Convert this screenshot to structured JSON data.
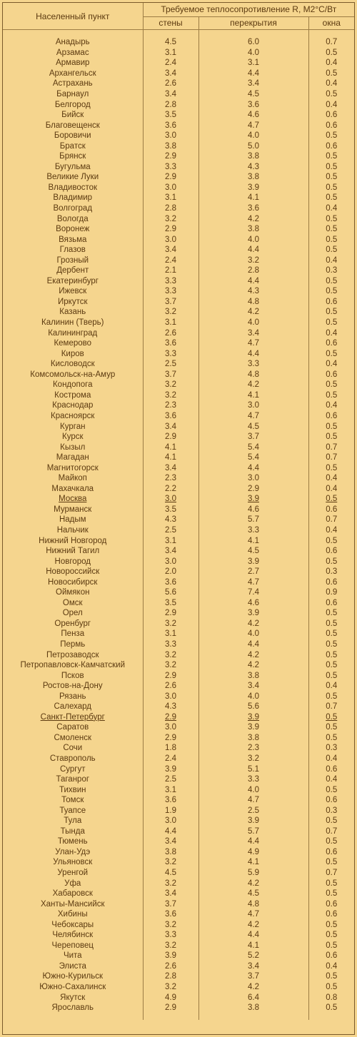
{
  "header": {
    "city": "Населенный пункт",
    "group": "Требуемое теплосопротивление R, М2°С/Вт",
    "walls": "стены",
    "ceilings": "перекрытия",
    "windows": "окна"
  },
  "rows": [
    {
      "city": "Анадырь",
      "walls": "4.5",
      "ceilings": "6.0",
      "windows": "0.7"
    },
    {
      "city": "Арзамас",
      "walls": "3.1",
      "ceilings": "4.0",
      "windows": "0.5"
    },
    {
      "city": "Армавир",
      "walls": "2.4",
      "ceilings": "3.1",
      "windows": "0.4"
    },
    {
      "city": "Архангельск",
      "walls": "3.4",
      "ceilings": "4.4",
      "windows": "0.5"
    },
    {
      "city": "Астрахань",
      "walls": "2.6",
      "ceilings": "3.4",
      "windows": "0.4"
    },
    {
      "city": "Барнаул",
      "walls": "3.4",
      "ceilings": "4.5",
      "windows": "0.5"
    },
    {
      "city": "Белгород",
      "walls": "2.8",
      "ceilings": "3.6",
      "windows": "0.4"
    },
    {
      "city": "Бийск",
      "walls": "3.5",
      "ceilings": "4.6",
      "windows": "0.6"
    },
    {
      "city": "Благовещенск",
      "walls": "3.6",
      "ceilings": "4.7",
      "windows": "0.6"
    },
    {
      "city": "Боровичи",
      "walls": "3.0",
      "ceilings": "4.0",
      "windows": "0.5"
    },
    {
      "city": "Братск",
      "walls": "3.8",
      "ceilings": "5.0",
      "windows": "0.6"
    },
    {
      "city": "Брянск",
      "walls": "2.9",
      "ceilings": "3.8",
      "windows": "0.5"
    },
    {
      "city": "Бугульма",
      "walls": "3.3",
      "ceilings": "4.3",
      "windows": "0.5"
    },
    {
      "city": "Великие Луки",
      "walls": "2.9",
      "ceilings": "3.8",
      "windows": "0.5"
    },
    {
      "city": "Владивосток",
      "walls": "3.0",
      "ceilings": "3.9",
      "windows": "0.5"
    },
    {
      "city": "Владимир",
      "walls": "3.1",
      "ceilings": "4.1",
      "windows": "0.5"
    },
    {
      "city": "Волгоград",
      "walls": "2.8",
      "ceilings": "3.6",
      "windows": "0.4"
    },
    {
      "city": "Вологда",
      "walls": "3.2",
      "ceilings": "4.2",
      "windows": "0.5"
    },
    {
      "city": "Воронеж",
      "walls": "2.9",
      "ceilings": "3.8",
      "windows": "0.5"
    },
    {
      "city": "Вязьма",
      "walls": "3.0",
      "ceilings": "4.0",
      "windows": "0.5"
    },
    {
      "city": "Глазов",
      "walls": "3.4",
      "ceilings": "4.4",
      "windows": "0.5"
    },
    {
      "city": "Грозный",
      "walls": "2.4",
      "ceilings": "3.2",
      "windows": "0.4"
    },
    {
      "city": "Дербент",
      "walls": "2.1",
      "ceilings": "2.8",
      "windows": "0.3"
    },
    {
      "city": "Екатеринбург",
      "walls": "3.3",
      "ceilings": "4.4",
      "windows": "0.5"
    },
    {
      "city": "Ижевск",
      "walls": "3.3",
      "ceilings": "4.3",
      "windows": "0.5"
    },
    {
      "city": "Иркутск",
      "walls": "3.7",
      "ceilings": "4.8",
      "windows": "0.6"
    },
    {
      "city": "Казань",
      "walls": "3.2",
      "ceilings": "4.2",
      "windows": "0.5"
    },
    {
      "city": "Калинин (Тверь)",
      "walls": "3.1",
      "ceilings": "4.0",
      "windows": "0.5"
    },
    {
      "city": "Калининград",
      "walls": "2.6",
      "ceilings": "3.4",
      "windows": "0.4"
    },
    {
      "city": "Кемерово",
      "walls": "3.6",
      "ceilings": "4.7",
      "windows": "0.6"
    },
    {
      "city": "Киров",
      "walls": "3.3",
      "ceilings": "4.4",
      "windows": "0.5"
    },
    {
      "city": "Кисловодск",
      "walls": "2.5",
      "ceilings": "3.3",
      "windows": "0.4"
    },
    {
      "city": "Комсомольск-на-Амур",
      "walls": "3.7",
      "ceilings": "4.8",
      "windows": "0.6"
    },
    {
      "city": "Кондопога",
      "walls": "3.2",
      "ceilings": "4.2",
      "windows": "0.5"
    },
    {
      "city": "Кострома",
      "walls": "3.2",
      "ceilings": "4.1",
      "windows": "0.5"
    },
    {
      "city": "Краснодар",
      "walls": "2.3",
      "ceilings": "3.0",
      "windows": "0.4"
    },
    {
      "city": "Красноярск",
      "walls": "3.6",
      "ceilings": "4.7",
      "windows": "0.6"
    },
    {
      "city": "Курган",
      "walls": "3.4",
      "ceilings": "4.5",
      "windows": "0.5"
    },
    {
      "city": "Курск",
      "walls": "2.9",
      "ceilings": "3.7",
      "windows": "0.5"
    },
    {
      "city": "Кызыл",
      "walls": "4.1",
      "ceilings": "5.4",
      "windows": "0.7"
    },
    {
      "city": "Магадан",
      "walls": "4.1",
      "ceilings": "5.4",
      "windows": "0.7"
    },
    {
      "city": "Магнитогорск",
      "walls": "3.4",
      "ceilings": "4.4",
      "windows": "0.5"
    },
    {
      "city": "Майкоп",
      "walls": "2.3",
      "ceilings": "3.0",
      "windows": "0.4"
    },
    {
      "city": "Махачкала",
      "walls": "2.2",
      "ceilings": "2.9",
      "windows": "0.4"
    },
    {
      "city": "Москва",
      "walls": "3.0",
      "ceilings": "3.9",
      "windows": "0.5",
      "underline": true
    },
    {
      "city": "Мурманск",
      "walls": "3.5",
      "ceilings": "4.6",
      "windows": "0.6"
    },
    {
      "city": "Надым",
      "walls": "4.3",
      "ceilings": "5.7",
      "windows": "0.7"
    },
    {
      "city": "Нальчик",
      "walls": "2.5",
      "ceilings": "3.3",
      "windows": "0.4"
    },
    {
      "city": "Нижний Новгород",
      "walls": "3.1",
      "ceilings": "4.1",
      "windows": "0.5"
    },
    {
      "city": "Нижний Тагил",
      "walls": "3.4",
      "ceilings": "4.5",
      "windows": "0.6"
    },
    {
      "city": "Новгород",
      "walls": "3.0",
      "ceilings": "3.9",
      "windows": "0.5"
    },
    {
      "city": "Новороссийск",
      "walls": "2.0",
      "ceilings": "2.7",
      "windows": "0.3"
    },
    {
      "city": "Новосибирск",
      "walls": "3.6",
      "ceilings": "4.7",
      "windows": "0.6"
    },
    {
      "city": "Оймякон",
      "walls": "5.6",
      "ceilings": "7.4",
      "windows": "0.9"
    },
    {
      "city": "Омск",
      "walls": "3.5",
      "ceilings": "4.6",
      "windows": "0.6"
    },
    {
      "city": "Орел",
      "walls": "2.9",
      "ceilings": "3.9",
      "windows": "0.5"
    },
    {
      "city": "Оренбург",
      "walls": "3.2",
      "ceilings": "4.2",
      "windows": "0.5"
    },
    {
      "city": "Пенза",
      "walls": "3.1",
      "ceilings": "4.0",
      "windows": "0.5"
    },
    {
      "city": "Пермь",
      "walls": "3.3",
      "ceilings": "4.4",
      "windows": "0.5"
    },
    {
      "city": "Петрозаводск",
      "walls": "3.2",
      "ceilings": "4.2",
      "windows": "0.5"
    },
    {
      "city": "Петропавловск-Камчатский",
      "walls": "3.2",
      "ceilings": "4.2",
      "windows": "0.5"
    },
    {
      "city": "Псков",
      "walls": "2.9",
      "ceilings": "3.8",
      "windows": "0.5"
    },
    {
      "city": "Ростов-на-Дону",
      "walls": "2.6",
      "ceilings": "3.4",
      "windows": "0.4"
    },
    {
      "city": "Рязань",
      "walls": "3.0",
      "ceilings": "4.0",
      "windows": "0.5"
    },
    {
      "city": "Салехард",
      "walls": "4.3",
      "ceilings": "5.6",
      "windows": "0.7"
    },
    {
      "city": "Санкт-Петербург",
      "walls": "2.9",
      "ceilings": "3.9",
      "windows": "0.5",
      "underline": true
    },
    {
      "city": "Саратов",
      "walls": "3.0",
      "ceilings": "3.9",
      "windows": "0.5"
    },
    {
      "city": "Смоленск",
      "walls": "2.9",
      "ceilings": "3.8",
      "windows": "0.5"
    },
    {
      "city": "Сочи",
      "walls": "1.8",
      "ceilings": "2.3",
      "windows": "0.3"
    },
    {
      "city": "Ставрополь",
      "walls": "2.4",
      "ceilings": "3.2",
      "windows": "0.4"
    },
    {
      "city": "Сургут",
      "walls": "3.9",
      "ceilings": "5.1",
      "windows": "0.6"
    },
    {
      "city": "Таганрог",
      "walls": "2.5",
      "ceilings": "3.3",
      "windows": "0.4"
    },
    {
      "city": "Тихвин",
      "walls": "3.1",
      "ceilings": "4.0",
      "windows": "0.5"
    },
    {
      "city": "Томск",
      "walls": "3.6",
      "ceilings": "4.7",
      "windows": "0.6"
    },
    {
      "city": "Туапсе",
      "walls": "1.9",
      "ceilings": "2.5",
      "windows": "0.3"
    },
    {
      "city": "Тула",
      "walls": "3.0",
      "ceilings": "3.9",
      "windows": "0.5"
    },
    {
      "city": "Тында",
      "walls": "4.4",
      "ceilings": "5.7",
      "windows": "0.7"
    },
    {
      "city": "Тюмень",
      "walls": "3.4",
      "ceilings": "4.4",
      "windows": "0.5"
    },
    {
      "city": "Улан-Удэ",
      "walls": "3.8",
      "ceilings": "4.9",
      "windows": "0.6"
    },
    {
      "city": "Ульяновск",
      "walls": "3.2",
      "ceilings": "4.1",
      "windows": "0.5"
    },
    {
      "city": "Уренгой",
      "walls": "4.5",
      "ceilings": "5.9",
      "windows": "0.7"
    },
    {
      "city": "Уфа",
      "walls": "3.2",
      "ceilings": "4.2",
      "windows": "0.5"
    },
    {
      "city": "Хабаровск",
      "walls": "3.4",
      "ceilings": "4.5",
      "windows": "0.5"
    },
    {
      "city": "Ханты-Мансийск",
      "walls": "3.7",
      "ceilings": "4.8",
      "windows": "0.6"
    },
    {
      "city": "Хибины",
      "walls": "3.6",
      "ceilings": "4.7",
      "windows": "0.6"
    },
    {
      "city": "Чебоксары",
      "walls": "3.2",
      "ceilings": "4.2",
      "windows": "0.5"
    },
    {
      "city": "Челябинск",
      "walls": "3.3",
      "ceilings": "4.4",
      "windows": "0.5"
    },
    {
      "city": "Череповец",
      "walls": "3.2",
      "ceilings": "4.1",
      "windows": "0.5"
    },
    {
      "city": "Чита",
      "walls": "3.9",
      "ceilings": "5.2",
      "windows": "0.6"
    },
    {
      "city": "Элиста",
      "walls": "2.6",
      "ceilings": "3.4",
      "windows": "0.4"
    },
    {
      "city": "Южно-Курильск",
      "walls": "2.8",
      "ceilings": "3.7",
      "windows": "0.5"
    },
    {
      "city": "Южно-Сахалинск",
      "walls": "3.2",
      "ceilings": "4.2",
      "windows": "0.5"
    },
    {
      "city": "Якутск",
      "walls": "4.9",
      "ceilings": "6.4",
      "windows": "0.8"
    },
    {
      "city": "Ярославль",
      "walls": "2.9",
      "ceilings": "3.8",
      "windows": "0.5"
    }
  ]
}
